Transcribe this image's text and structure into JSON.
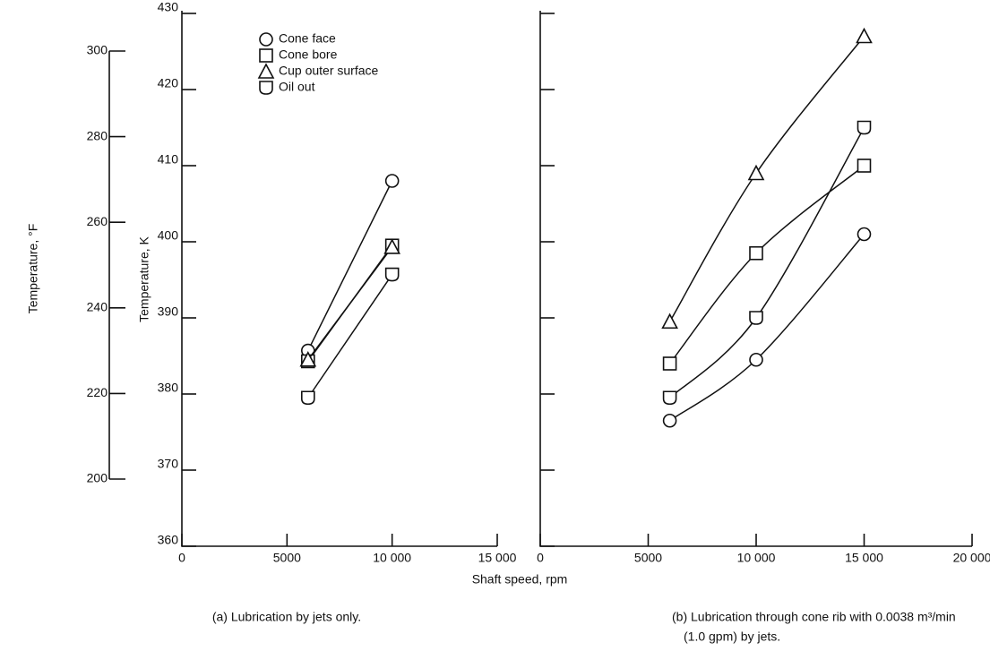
{
  "chart_data": [
    {
      "type": "line",
      "ylabel": "Temperature, K",
      "y2label": "Temperature, °F",
      "caption": [
        "(a) Lubrication by jets only."
      ],
      "x": [
        6000,
        10000
      ],
      "xlim": [
        0,
        15000
      ],
      "xticks": [
        0,
        5000,
        {
          "value": 10000,
          "label": "10 000"
        },
        {
          "value": 15000,
          "label": "15 000"
        }
      ],
      "ylim": [
        360,
        430
      ],
      "yticks": [
        360,
        370,
        380,
        390,
        400,
        410,
        420,
        430
      ],
      "y2lim": [
        200,
        300
      ],
      "y2ticks": [
        200,
        220,
        240,
        260,
        280,
        300
      ],
      "legend": "upper-center",
      "series": [
        {
          "name": "Cone face",
          "marker": "circle",
          "color": "#111111",
          "values": [
            385.7,
            408
          ]
        },
        {
          "name": "Cone bore",
          "marker": "square",
          "color": "#111111",
          "values": [
            384.3,
            399.5
          ]
        },
        {
          "name": "Cup outer surface",
          "marker": "triangle",
          "color": "#111111",
          "values": [
            384.5,
            399.3
          ]
        },
        {
          "name": "Oil out",
          "marker": "shield",
          "color": "#111111",
          "values": [
            379.5,
            395.7
          ]
        }
      ]
    },
    {
      "type": "line",
      "xlabel": "Shaft speed, rpm",
      "caption": [
        "(b) Lubrication through cone rib with 0.0038 m³/min",
        "(1.0 gpm) by jets."
      ],
      "x": [
        6000,
        10000,
        15000
      ],
      "xlim": [
        0,
        20000
      ],
      "xticks": [
        0,
        5000,
        {
          "value": 10000,
          "label": "10 000"
        },
        {
          "value": 15000,
          "label": "15 000"
        },
        {
          "value": 20000,
          "label": "20 000"
        }
      ],
      "ylim": [
        360,
        430
      ],
      "yticks": [
        360,
        370,
        380,
        390,
        400,
        410,
        420,
        430
      ],
      "series": [
        {
          "marker": "circle",
          "color": "#111111",
          "values": [
            376.5,
            384.5,
            401
          ]
        },
        {
          "marker": "square",
          "color": "#111111",
          "values": [
            384,
            398.5,
            410
          ]
        },
        {
          "marker": "triangle",
          "color": "#111111",
          "values": [
            389.5,
            409,
            427
          ]
        },
        {
          "marker": "shield",
          "color": "#111111",
          "values": [
            379.5,
            390,
            415
          ]
        }
      ]
    }
  ]
}
